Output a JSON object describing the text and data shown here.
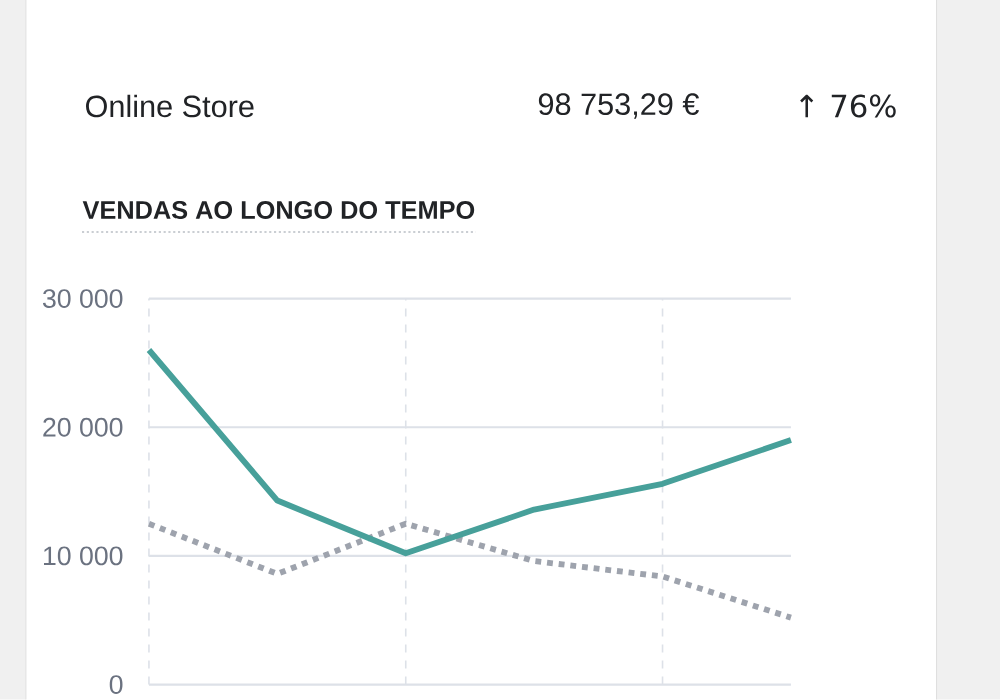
{
  "chart_data": {
    "type": "line",
    "title": "VENDAS AO LONGO DO TEMPO",
    "annotations": [
      "Online Store",
      "98 753,29 €",
      "↑ 76%"
    ],
    "categories": [
      null,
      null,
      null,
      null,
      null,
      null
    ],
    "series": [
      {
        "color": "#47a09a",
        "line_style": "solid",
        "values": [
          26000,
          14300,
          10200,
          13600,
          15600,
          19000
        ]
      },
      {
        "color": "#9ea3ad",
        "line_style": "dotted",
        "values": [
          12500,
          8600,
          12500,
          9600,
          8400,
          5200
        ]
      }
    ],
    "ylim": [
      0,
      30000
    ],
    "yticks": [
      {
        "value": 0,
        "label": "0"
      },
      {
        "value": 10000,
        "label": "10 000"
      },
      {
        "value": 20000,
        "label": "20 000"
      },
      {
        "value": 30000,
        "label": "30 000"
      }
    ],
    "grid": true,
    "marker": "none"
  }
}
